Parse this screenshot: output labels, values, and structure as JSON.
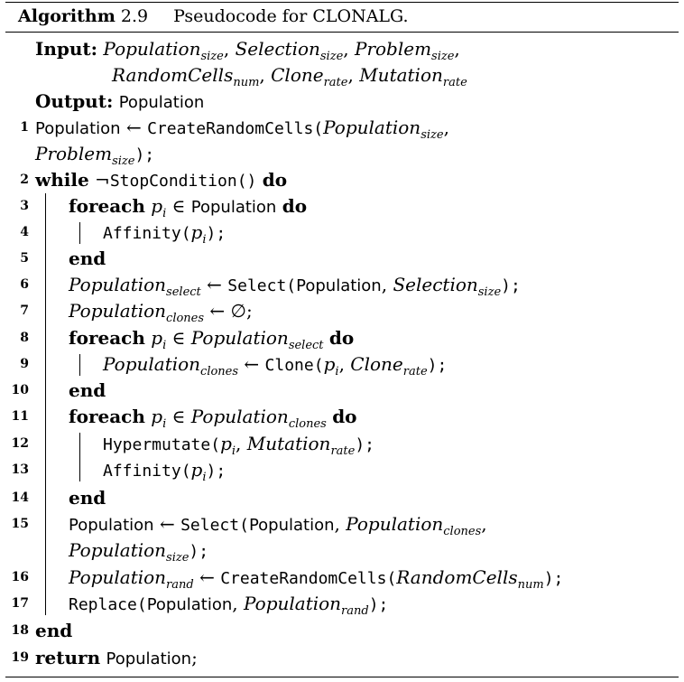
{
  "caption": {
    "label": "Algorithm",
    "number": "2.9",
    "title": "Pseudocode for CLONALG."
  },
  "input_label": "Input",
  "output_label": "Output",
  "output_value": "Population",
  "kw": {
    "while": "while",
    "do": "do",
    "foreach": "foreach",
    "end": "end",
    "return": "return"
  },
  "sym": {
    "arrow": "←",
    "not": "¬",
    "in": "∈",
    "empty": "∅",
    "colon": ":"
  },
  "vars": {
    "Population": "Population",
    "p": "p",
    "i": "i",
    "Population_size": [
      "Population",
      "size"
    ],
    "Selection_size": [
      "Selection",
      "size"
    ],
    "Problem_size": [
      "Problem",
      "size"
    ],
    "RandomCells_num": [
      "RandomCells",
      "num"
    ],
    "Clone_rate": [
      "Clone",
      "rate"
    ],
    "Mutation_rate": [
      "Mutation",
      "rate"
    ],
    "Population_select": [
      "Population",
      "select"
    ],
    "Population_clones": [
      "Population",
      "clones"
    ],
    "Population_rand": [
      "Population",
      "rand"
    ]
  },
  "funcs": {
    "CreateRandomCells": "CreateRandomCells",
    "StopCondition": "StopCondition()",
    "Affinity": "Affinity",
    "Select": "Select",
    "Clone": "Clone",
    "Hypermutate": "Hypermutate",
    "Replace": "Replace"
  },
  "line_numbers": [
    "1",
    "2",
    "3",
    "4",
    "5",
    "6",
    "7",
    "8",
    "9",
    "10",
    "11",
    "12",
    "13",
    "14",
    "15",
    "16",
    "17",
    "18",
    "19"
  ]
}
